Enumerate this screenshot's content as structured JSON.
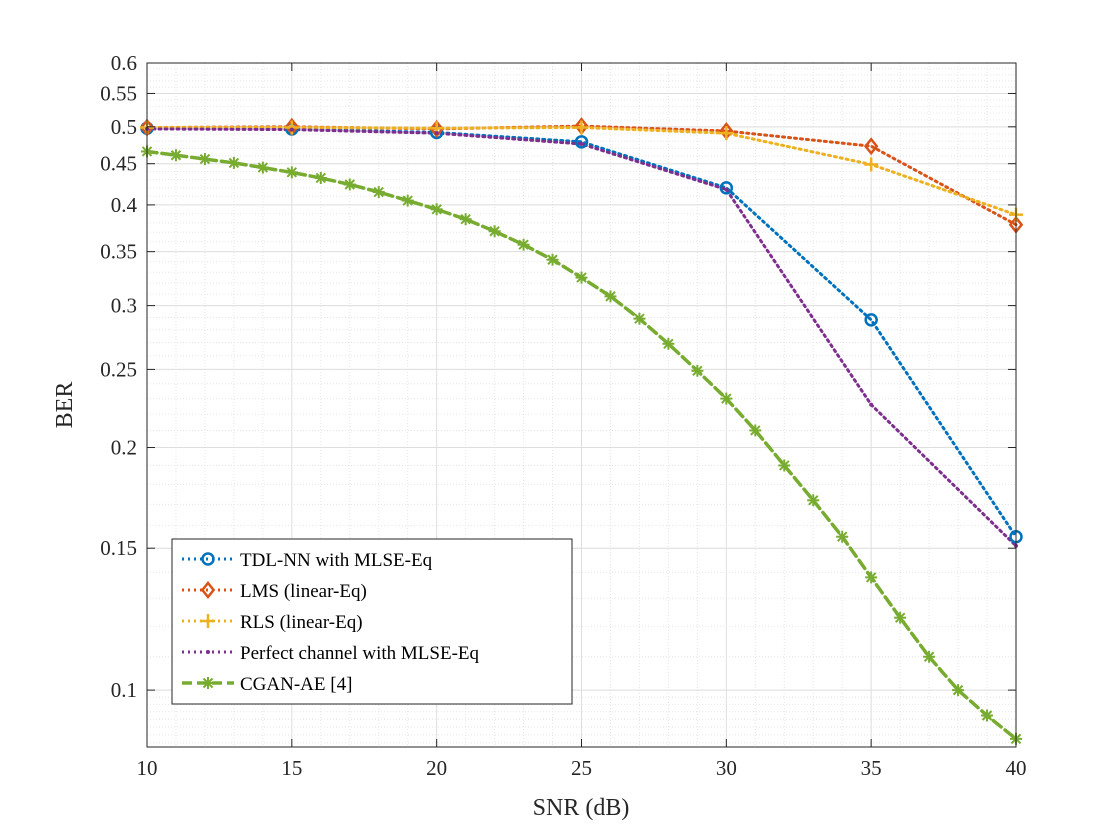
{
  "chart_data": {
    "type": "line",
    "title": "",
    "xlabel": "SNR (dB)",
    "ylabel": "BER",
    "xscale": "linear",
    "yscale": "log",
    "xlim": [
      10,
      40
    ],
    "ylim": [
      0.085,
      0.6
    ],
    "grid": true,
    "minor_grid": true,
    "legend_location": "bottom-left",
    "x_ticks": [
      10,
      15,
      20,
      25,
      30,
      35,
      40
    ],
    "x_tick_labels": [
      "10",
      "15",
      "20",
      "25",
      "30",
      "35",
      "40"
    ],
    "y_ticks": [
      0.1,
      0.15,
      0.2,
      0.25,
      0.3,
      0.35,
      0.4,
      0.45,
      0.5,
      0.55,
      0.6
    ],
    "y_tick_labels": [
      "0.1",
      "0.15",
      "0.2",
      "0.25",
      "0.3",
      "0.35",
      "0.4",
      "0.45",
      "0.5",
      "0.55",
      "0.6"
    ],
    "series": [
      {
        "name": "TDL-NN with MLSE-Eq",
        "color": "#0072BD",
        "marker": "circle",
        "line_style": "dotted",
        "x": [
          10,
          15,
          20,
          25,
          30,
          35,
          40
        ],
        "values": [
          0.498,
          0.497,
          0.492,
          0.479,
          0.42,
          0.288,
          0.155
        ]
      },
      {
        "name": "LMS (linear-Eq)",
        "color": "#D95319",
        "marker": "diamond",
        "line_style": "dotted",
        "x": [
          10,
          15,
          20,
          25,
          30,
          35,
          40
        ],
        "values": [
          0.499,
          0.5,
          0.497,
          0.501,
          0.494,
          0.473,
          0.378
        ]
      },
      {
        "name": "RLS (linear-Eq)",
        "color": "#EDB120",
        "marker": "plus",
        "line_style": "dotted",
        "x": [
          10,
          15,
          20,
          25,
          30,
          35,
          40
        ],
        "values": [
          0.499,
          0.499,
          0.498,
          0.499,
          0.491,
          0.449,
          0.389
        ]
      },
      {
        "name": "Perfect channel with MLSE-Eq",
        "color": "#7E2F8E",
        "marker": "point",
        "line_style": "dotted",
        "x": [
          10,
          15,
          20,
          25,
          30,
          35,
          40
        ],
        "values": [
          0.497,
          0.496,
          0.491,
          0.476,
          0.418,
          0.226,
          0.151
        ]
      },
      {
        "name": "CGAN-AE [4]",
        "color": "#77AC30",
        "marker": "asterisk",
        "line_style": "dashed",
        "x": [
          10,
          11,
          12,
          13,
          14,
          15,
          16,
          17,
          18,
          19,
          20,
          21,
          22,
          23,
          24,
          25,
          26,
          27,
          28,
          29,
          30,
          31,
          32,
          33,
          34,
          35,
          36,
          37,
          38,
          39,
          40
        ],
        "values": [
          0.466,
          0.461,
          0.456,
          0.451,
          0.445,
          0.439,
          0.432,
          0.424,
          0.415,
          0.405,
          0.395,
          0.384,
          0.371,
          0.357,
          0.342,
          0.325,
          0.308,
          0.289,
          0.269,
          0.249,
          0.23,
          0.21,
          0.19,
          0.172,
          0.155,
          0.138,
          0.123,
          0.11,
          0.1,
          0.093,
          0.087
        ]
      }
    ]
  }
}
